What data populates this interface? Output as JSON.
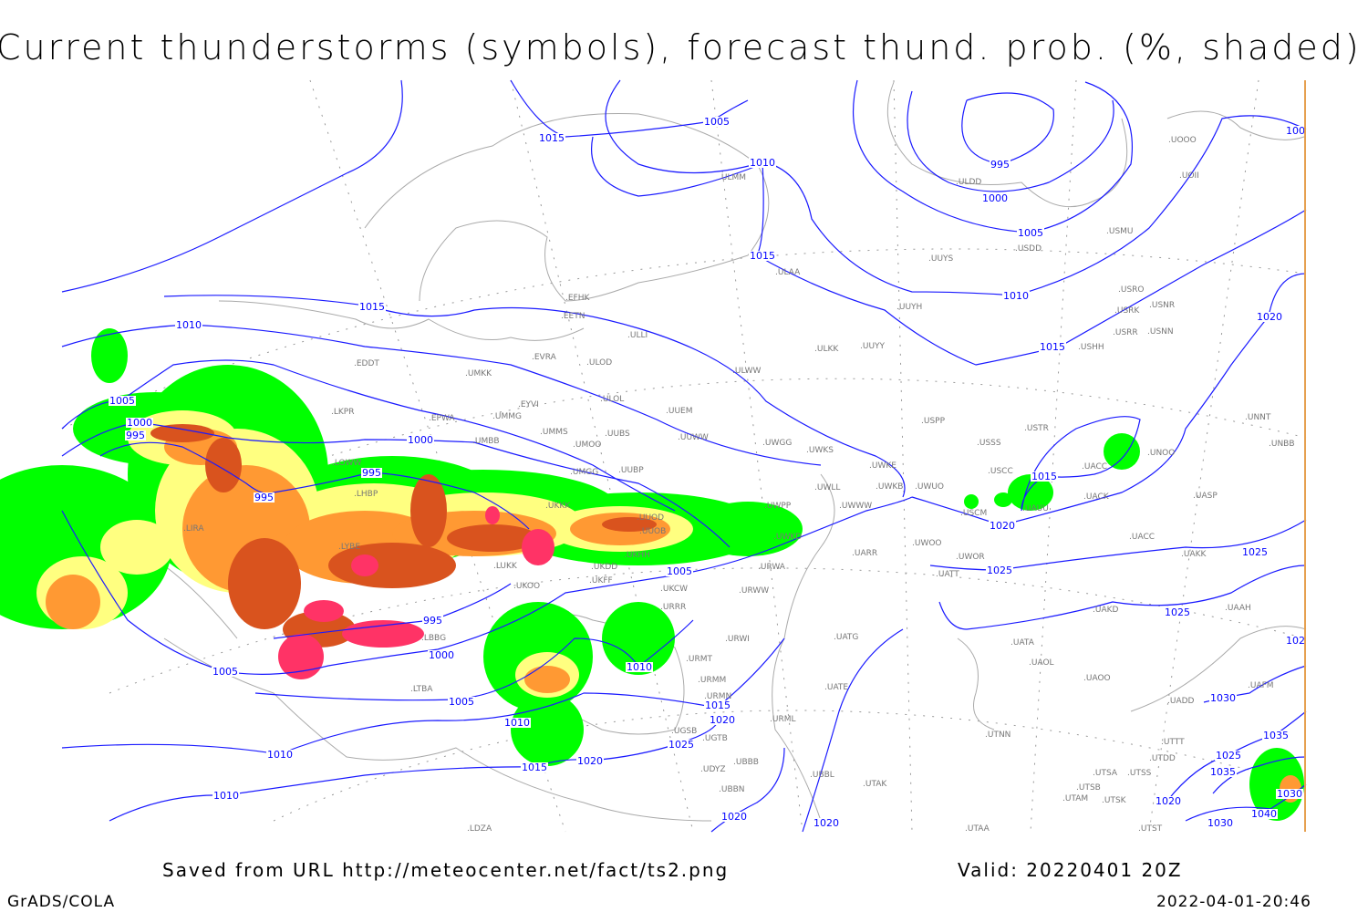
{
  "title": "Current thunderstorms (symbols), forecast thund. prob. (%, shaded)",
  "footer": {
    "source": "Saved from URL http://meteocenter.net/fact/ts2.png",
    "valid": "Valid: 20220401 20Z",
    "software": "GrADS/COLA",
    "timestamp": "2022-04-01-20:46"
  },
  "colors": {
    "isobar": "#1a1aff",
    "coastline": "#aaaaaa",
    "prob_low": "#00ff00",
    "prob_mid_low": "#ffff80",
    "prob_mid": "#ff9933",
    "prob_high": "#d9531e",
    "thunderstorm_symbol": "#ff3366"
  },
  "isobar_labels": [
    "1005",
    "1015",
    "1010",
    "995",
    "1000",
    "1005",
    "1015",
    "1010",
    "1015",
    "1010",
    "1015",
    "1020",
    "1005",
    "1000",
    "995",
    "1000",
    "995",
    "995",
    "1015",
    "1020",
    "1025",
    "1025",
    "1005",
    "995",
    "1000",
    "1005",
    "1010",
    "1025",
    "1005",
    "1015",
    "1020",
    "1010",
    "1030",
    "1035",
    "1025",
    "1010",
    "1020",
    "1015",
    "1025",
    "1035",
    "1010",
    "1020",
    "1040",
    "1030",
    "1030",
    "1020",
    "1020",
    "100",
    "102"
  ],
  "stations": [
    "EFHK",
    "EETN",
    "ULLI",
    "EVRA",
    "ULOD",
    "EDDT",
    "UMKK",
    "ULOL",
    "EYVI",
    "UUEM",
    "LKPR",
    "EPWA",
    "UMMG",
    "UMMS",
    "UMOO",
    "UUBS",
    "UUWW",
    "UMBB",
    "UWGG",
    "UWKS",
    "LOWW",
    "UMGG",
    "UUBP",
    "LHBP",
    "UKKK",
    "UWLL",
    "UWWW",
    "UWPP",
    "UUOD",
    "UUOB",
    "UKHH",
    "UKDD",
    "UKCW",
    "UKOO",
    "UKFF",
    "LYBE",
    "LUKK",
    "LIRA",
    "UWKD",
    "URWA",
    "URRR",
    "URWW",
    "URWI",
    "URMT",
    "URMM",
    "URMN",
    "URML",
    "UGSB",
    "UDYZ",
    "UBBB",
    "UBBN",
    "UGTB",
    "LBBG",
    "LTBA",
    "UATG",
    "UATE",
    "UBBL",
    "UTAK",
    "UTAA",
    "UTNN",
    "UAOO",
    "UAOL",
    "UATA",
    "UAKD",
    "UATT",
    "UWOR",
    "UWOO",
    "UARR",
    "USCM",
    "UAUU",
    "USCC",
    "UWUO",
    "UWKB",
    "UWKE",
    "USSS",
    "USTR",
    "USPP",
    "UNOO",
    "UACC",
    "UACK",
    "UASP",
    "UNNT",
    "UNBB",
    "UACC",
    "UAKK",
    "UAAH",
    "UAFM",
    "UADD",
    "UTSA",
    "UTSB",
    "UTSS",
    "UTSK",
    "UTAM",
    "UTST",
    "UTDD",
    "UTTT",
    "ULDD",
    "ULMM",
    "ULAA",
    "UUYS",
    "UUYH",
    "UUYY",
    "ULKK",
    "ULWW",
    "USDD",
    "USMU",
    "UOOO",
    "UOII",
    "USRO",
    "USRK",
    "USNR",
    "USRR",
    "USNN",
    "USHH",
    "LDZA"
  ]
}
